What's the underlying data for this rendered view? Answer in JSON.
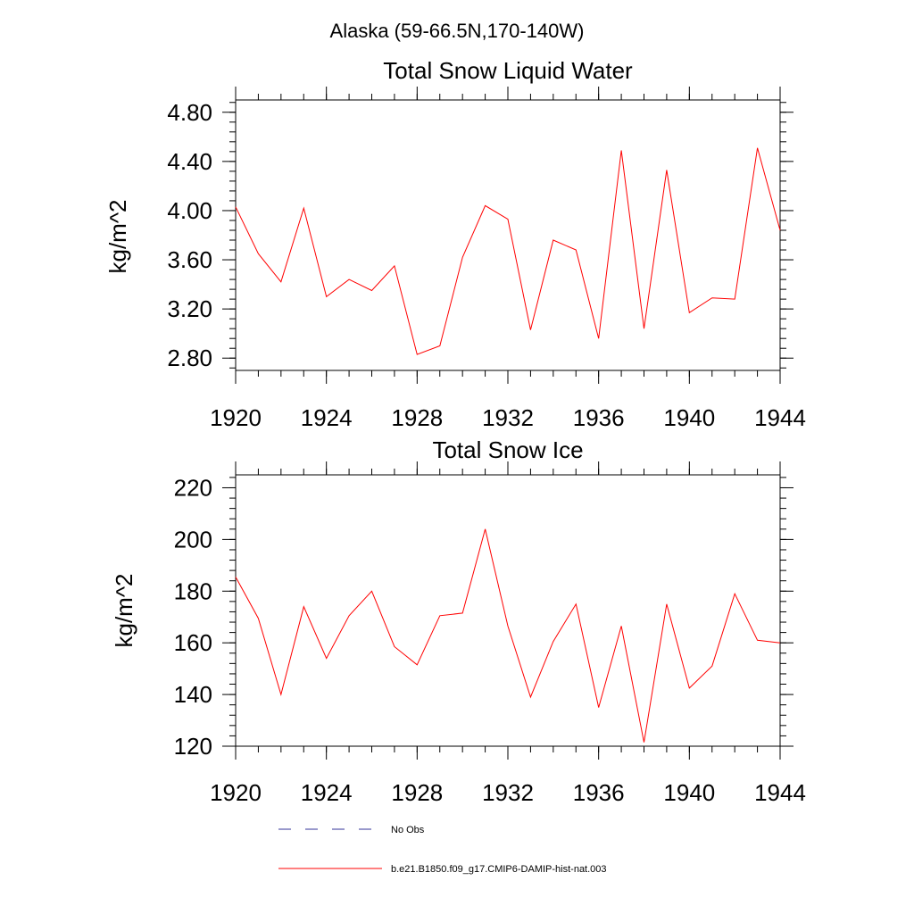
{
  "figure_title": "Alaska (59-66.5N,170-140W)",
  "legend": [
    {
      "label": "No Obs",
      "color": "#333399",
      "dash": true
    },
    {
      "label": "b.e21.B1850.f09_g17.CMIP6-DAMIP-hist-nat.003",
      "color": "#ff0000",
      "dash": false
    }
  ],
  "chart_data": [
    {
      "type": "line",
      "title": "Total Snow Liquid Water",
      "ylabel": "kg/m^2",
      "xlabel": "",
      "xlim": [
        1920,
        1944
      ],
      "ylim": [
        2.7,
        4.9
      ],
      "xticks": [
        "1920",
        "1924",
        "1928",
        "1932",
        "1936",
        "1940",
        "1944"
      ],
      "yticks": [
        "2.80",
        "3.20",
        "3.60",
        "4.00",
        "4.40",
        "4.80"
      ],
      "grid": false,
      "series": [
        {
          "color": "#ff0000",
          "x": [
            1920,
            1921,
            1922,
            1923,
            1924,
            1925,
            1926,
            1927,
            1928,
            1929,
            1930,
            1931,
            1932,
            1933,
            1934,
            1935,
            1936,
            1937,
            1938,
            1939,
            1940,
            1941,
            1942,
            1943,
            1944
          ],
          "values": [
            4.03,
            3.65,
            3.42,
            4.02,
            3.3,
            3.44,
            3.35,
            3.55,
            2.83,
            2.9,
            3.62,
            4.04,
            3.93,
            3.03,
            3.76,
            3.68,
            2.96,
            4.49,
            3.04,
            4.33,
            3.17,
            3.29,
            3.28,
            4.51,
            3.84
          ]
        }
      ]
    },
    {
      "type": "line",
      "title": "Total Snow Ice",
      "ylabel": "kg/m^2",
      "xlabel": "",
      "xlim": [
        1920,
        1944
      ],
      "ylim": [
        120,
        225
      ],
      "xticks": [
        "1920",
        "1924",
        "1928",
        "1932",
        "1936",
        "1940",
        "1944"
      ],
      "yticks": [
        "120",
        "140",
        "160",
        "180",
        "200",
        "220"
      ],
      "grid": false,
      "series": [
        {
          "color": "#ff0000",
          "x": [
            1920,
            1921,
            1922,
            1923,
            1924,
            1925,
            1926,
            1927,
            1928,
            1929,
            1930,
            1931,
            1932,
            1933,
            1934,
            1935,
            1936,
            1937,
            1938,
            1939,
            1940,
            1941,
            1942,
            1943,
            1944
          ],
          "values": [
            185.5,
            169.5,
            140,
            174,
            154,
            170.5,
            180,
            158.5,
            151.5,
            170.5,
            171.5,
            204,
            166.5,
            139,
            160.5,
            175,
            135,
            166.5,
            121.5,
            175,
            142.5,
            151,
            179,
            161,
            160
          ]
        }
      ]
    }
  ]
}
